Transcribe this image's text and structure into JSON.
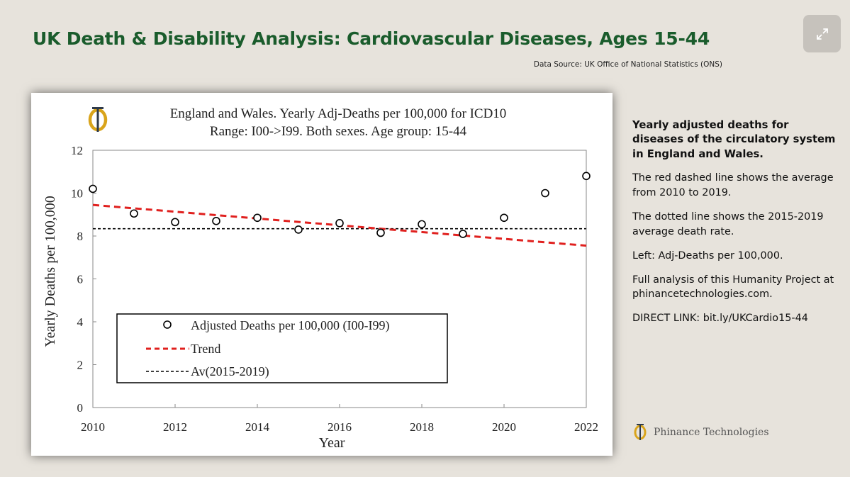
{
  "page": {
    "title": "UK Death & Disability Analysis: Cardiovascular Diseases, Ages 15-44",
    "source": "Data Source: UK Office of National Statistics (ONS)"
  },
  "chart_data": {
    "type": "scatter",
    "title_line1": "England and Wales. Yearly Adj-Deaths per 100,000 for ICD10",
    "title_line2": "Range: I00->I99. Both sexes. Age group: 15-44",
    "xlabel": "Year",
    "ylabel": "Yearly Deaths per 100,000",
    "xlim": [
      2010,
      2022
    ],
    "ylim": [
      0,
      12
    ],
    "xticks": [
      2010,
      2012,
      2014,
      2016,
      2018,
      2020,
      2022
    ],
    "yticks": [
      0,
      2,
      4,
      6,
      8,
      10,
      12
    ],
    "x": [
      2010,
      2011,
      2012,
      2013,
      2014,
      2015,
      2016,
      2017,
      2018,
      2019,
      2020,
      2021,
      2022
    ],
    "series": [
      {
        "name": "Adjusted Deaths per 100,000 (I00-I99)",
        "values": [
          10.2,
          9.05,
          8.65,
          8.7,
          8.85,
          8.3,
          8.6,
          8.15,
          8.55,
          8.1,
          8.85,
          10.0,
          10.8
        ]
      }
    ],
    "trend": {
      "name": "Trend",
      "x": [
        2010,
        2022
      ],
      "y": [
        9.45,
        7.55
      ],
      "color": "#e0201e"
    },
    "average": {
      "name": "Av(2015-2019)",
      "y": 8.34,
      "color": "#000000"
    },
    "legend_position": "bottom-left",
    "grid": false
  },
  "sidebar": {
    "lead": "Yearly adjusted deaths for diseases of the circulatory system in England and Wales.",
    "p1": "The red dashed line shows the average from 2010 to 2019.",
    "p2": "The dotted line shows the 2015-2019 average death rate.",
    "p3": "Left: Adj-Deaths per 100,000.",
    "p4": "Full analysis of this Humanity Project at phinancetechnologies.com.",
    "p5": "DIRECT LINK: bit.ly/UKCardio15-44"
  },
  "brand": {
    "name": "Phinance Technologies"
  },
  "colors": {
    "title": "#1a5c2c",
    "logo_gold": "#d9a41b",
    "logo_dark": "#2e3a4a"
  },
  "icons": {
    "expand": "expand-icon",
    "logo": "phinance-logo-icon"
  }
}
